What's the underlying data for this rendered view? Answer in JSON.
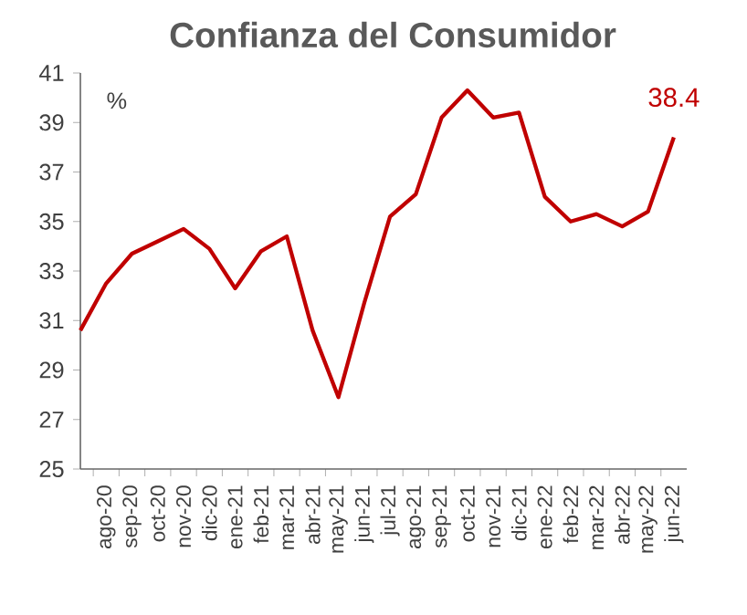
{
  "chart_data": {
    "type": "line",
    "title": "Confianza del Consumidor",
    "ylabel": "%",
    "categories": [
      null,
      "ago-20",
      "sep-20",
      "oct-20",
      "nov-20",
      "dic-20",
      "ene-21",
      "feb-21",
      "mar-21",
      "abr-21",
      "may-21",
      "jun-21",
      "jul-21",
      "ago-21",
      "sep-21",
      "oct-21",
      "nov-21",
      "dic-21",
      "ene-22",
      "feb-22",
      "mar-22",
      "abr-22",
      "may-22",
      "jun-22"
    ],
    "values": [
      30.6,
      32.5,
      33.7,
      34.2,
      34.7,
      33.9,
      32.3,
      33.8,
      34.4,
      30.6,
      27.9,
      31.7,
      35.2,
      36.1,
      39.2,
      40.3,
      39.2,
      39.4,
      36.0,
      35.0,
      35.3,
      34.8,
      35.4,
      38.4
    ],
    "color": "#c00000",
    "ylim": [
      25,
      41
    ],
    "yticks": [
      25,
      27,
      29,
      31,
      33,
      35,
      37,
      39,
      41
    ],
    "marker": "none",
    "line_style": "solid",
    "annotations": [
      {
        "text": "38.4",
        "x": "jun-22",
        "y": 38.4
      }
    ]
  }
}
